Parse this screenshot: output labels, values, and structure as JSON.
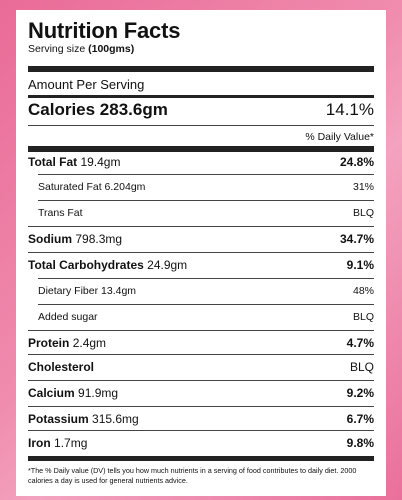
{
  "label": {
    "title": "Nutrition Facts",
    "serving_label": "Serving size",
    "serving_value": "(100gms)",
    "amount_per_serving": "Amount Per Serving",
    "calories_label": "Calories 283.6gm",
    "calories_percent": "14.1%",
    "daily_value_header": "% Daily Value*"
  },
  "nutrients": [
    {
      "name": "Total Fat",
      "amount": "19.4gm",
      "percent": "24.8%"
    },
    {
      "name": "Saturated Fat",
      "amount": "6.204gm",
      "percent": "31%"
    },
    {
      "name": "Trans Fat",
      "amount": "",
      "percent": "BLQ"
    },
    {
      "name": "Sodium",
      "amount": "798.3mg",
      "percent": "34.7%"
    },
    {
      "name": "Total Carbohydrates",
      "amount": "24.9gm",
      "percent": "9.1%"
    },
    {
      "name": "Dietary Fiber",
      "amount": "13.4gm",
      "percent": "48%"
    },
    {
      "name": "Added sugar",
      "amount": "",
      "percent": "BLQ"
    },
    {
      "name": "Protein",
      "amount": "2.4gm",
      "percent": "4.7%"
    },
    {
      "name": "Cholesterol",
      "amount": "",
      "percent": "BLQ"
    },
    {
      "name": "Calcium",
      "amount": "91.9mg",
      "percent": "9.2%"
    },
    {
      "name": "Potassium",
      "amount": "315.6mg",
      "percent": "6.7%"
    },
    {
      "name": "Iron",
      "amount": "1.7mg",
      "percent": "9.8%"
    }
  ],
  "footnote": "*The % Daily value (DV) tells you how much nutrients in a serving of food contributes to daily diet. 2000 calories a day is used for general nutrients advice.",
  "colors": {
    "background": "#ec7fa5",
    "panel": "#ffffff",
    "text": "#111111"
  }
}
